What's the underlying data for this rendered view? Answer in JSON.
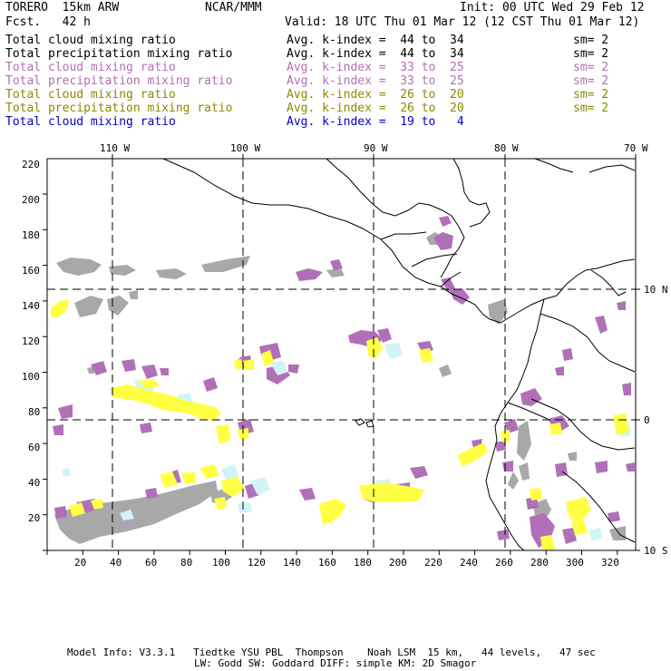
{
  "header": {
    "model": "TORERO  15km ARW",
    "org": "NCAR/MMM",
    "init": "Init: 00 UTC Wed 29 Feb 12",
    "fcst": "Fcst.   42 h",
    "valid": "Valid: 18 UTC Thu 01 Mar 12 (12 CST Thu 01 Mar 12)"
  },
  "legend": [
    {
      "field": "Total cloud mixing ratio",
      "kindex": "Avg. k-index =  44 to  34",
      "sm": "sm= 2",
      "color": "#000000"
    },
    {
      "field": "Total precipitation mixing ratio",
      "kindex": "Avg. k-index =  44 to  34",
      "sm": "sm= 2",
      "color": "#000000"
    },
    {
      "field": "Total cloud mixing ratio",
      "kindex": "Avg. k-index =  33 to  25",
      "sm": "sm= 2",
      "color": "#b36fb3"
    },
    {
      "field": "Total precipitation mixing ratio",
      "kindex": "Avg. k-index =  33 to  25",
      "sm": "sm= 2",
      "color": "#b36fb3"
    },
    {
      "field": "Total cloud mixing ratio",
      "kindex": "Avg. k-index =  26 to  20",
      "sm": "sm= 2",
      "color": "#8a8a00"
    },
    {
      "field": "Total precipitation mixing ratio",
      "kindex": "Avg. k-index =  26 to  20",
      "sm": "sm= 2",
      "color": "#8a8a00"
    },
    {
      "field": "Total cloud mixing ratio",
      "kindex": "Avg. k-index =  19 to   4",
      "sm": "",
      "color": "#0000cc"
    }
  ],
  "top_axis": [
    "110 W",
    "100 W",
    "90 W",
    "80 W",
    "70 W"
  ],
  "right_axis": [
    "10 N",
    "0",
    "10 S"
  ],
  "left_axis": [
    "220",
    "200",
    "180",
    "160",
    "140",
    "120",
    "100",
    "80",
    "60",
    "40",
    "20"
  ],
  "bottom_axis": [
    "20",
    "40",
    "60",
    "80",
    "100",
    "120",
    "140",
    "160",
    "180",
    "200",
    "220",
    "240",
    "260",
    "280",
    "300",
    "320"
  ],
  "footer": {
    "line1": "Model Info: V3.3.1   Tiedtke YSU PBL  Thompson    Noah LSM  15 km,   44 levels,   47 sec",
    "line2": "LW: Godd SW: Goddard DIFF: simple KM: 2D Smagor"
  },
  "colors": {
    "gray": "#a8a8a8",
    "purple": "#b070b8",
    "yellow": "#ffff44",
    "cyan": "#d0f4f8"
  }
}
